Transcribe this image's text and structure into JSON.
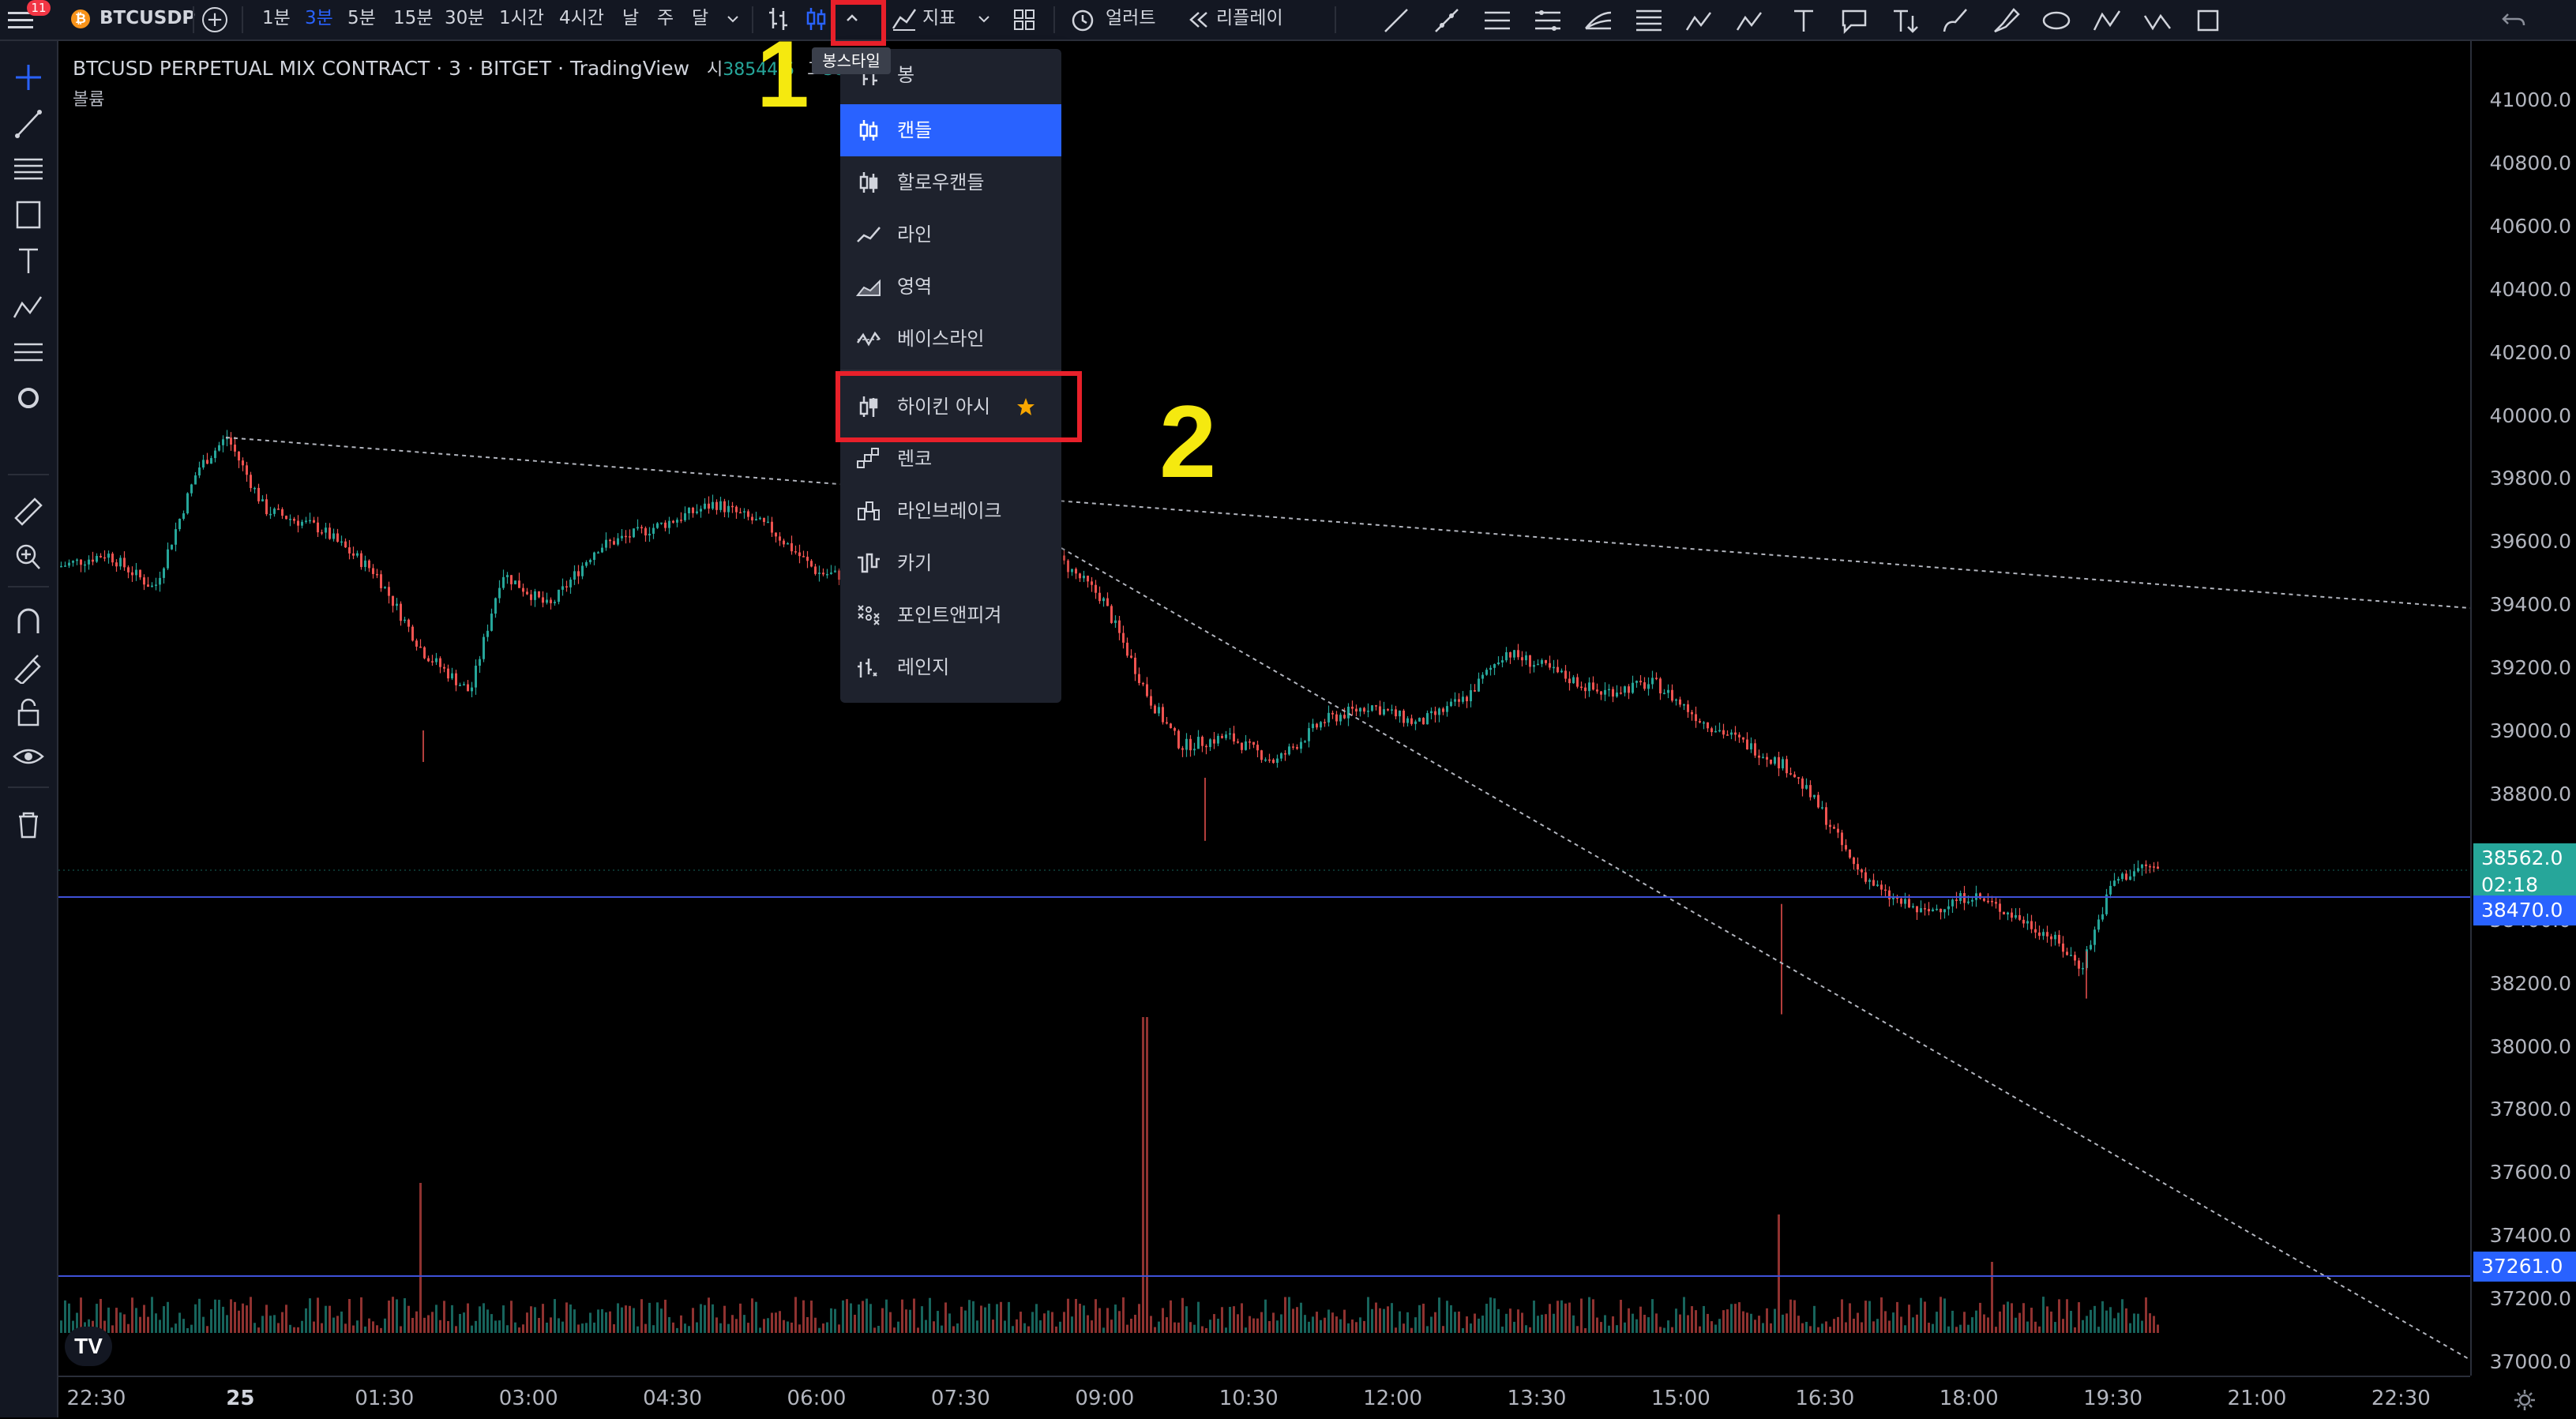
{
  "topbar": {
    "notification_count": "11",
    "symbol": "BTCUSDP",
    "intervals": [
      "1분",
      "3분",
      "5분",
      "15분",
      "30분",
      "1시간",
      "4시간",
      "날",
      "주",
      "달"
    ],
    "active_interval": "3분",
    "indicators_label": "지표",
    "alert_label": "얼러트",
    "replay_label": "리플레이",
    "chart_style_tooltip": "봉스타일"
  },
  "legend": {
    "title": "BTCUSD PERPETUAL MIX CONTRACT · 3 · BITGET · TradingView",
    "open_label": "시",
    "open_value": "38544.5",
    "high_label": "고",
    "high_value": "385",
    "volume_label": "볼륨"
  },
  "chart_style_menu": {
    "items": [
      {
        "label": "봉",
        "icon": "bars-icon",
        "active": false
      },
      {
        "label": "캔들",
        "icon": "candles-icon",
        "active": true
      },
      {
        "label": "할로우캔들",
        "icon": "hollow-candles-icon",
        "active": false
      },
      {
        "label": "라인",
        "icon": "line-icon",
        "active": false
      },
      {
        "label": "영역",
        "icon": "area-icon",
        "active": false
      },
      {
        "label": "베이스라인",
        "icon": "baseline-icon",
        "active": false
      },
      {
        "label": "하이킨 아시",
        "icon": "heikin-ashi-icon",
        "active": false,
        "favorite": true
      },
      {
        "label": "렌코",
        "icon": "renko-icon",
        "active": false
      },
      {
        "label": "라인브레이크",
        "icon": "line-break-icon",
        "active": false
      },
      {
        "label": "카기",
        "icon": "kagi-icon",
        "active": false
      },
      {
        "label": "포인트앤피겨",
        "icon": "point-figure-icon",
        "active": false
      },
      {
        "label": "레인지",
        "icon": "range-icon",
        "active": false
      }
    ]
  },
  "annotations": {
    "step1": "1",
    "step2": "2"
  },
  "price_axis": {
    "ticks": [
      "41000.0",
      "40800.0",
      "40600.0",
      "40400.0",
      "40200.0",
      "40000.0",
      "39800.0",
      "39600.0",
      "39400.0",
      "39200.0",
      "39000.0",
      "38800.0",
      "38600.0",
      "38400.0",
      "38200.0",
      "38000.0",
      "37800.0",
      "37600.0",
      "37400.0",
      "37200.0",
      "37000.0"
    ],
    "last_price": "38562.0",
    "countdown": "02:18",
    "line_price": "38470.0",
    "line_price_2": "37261.0"
  },
  "time_axis": {
    "ticks": [
      "22:30",
      "25",
      "01:30",
      "03:00",
      "04:30",
      "06:00",
      "07:30",
      "09:00",
      "10:30",
      "12:00",
      "13:30",
      "15:00",
      "16:30",
      "18:00",
      "19:30",
      "21:00",
      "22:30"
    ]
  },
  "colors": {
    "up": "#26a69a",
    "down": "#ef5350",
    "accent": "#2962ff",
    "annotation": "#f5e90f",
    "highlight": "#e8202a"
  }
}
